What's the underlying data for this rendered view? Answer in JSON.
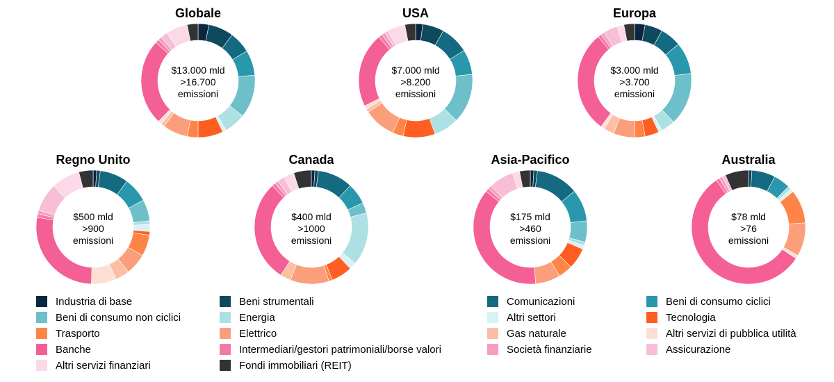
{
  "categories": [
    {
      "name": "Industria di base",
      "color": "#0b2740"
    },
    {
      "name": "Beni strumentali",
      "color": "#0e4a5e"
    },
    {
      "name": "Comunicazioni",
      "color": "#146a80"
    },
    {
      "name": "Beni di consumo ciclici",
      "color": "#2a98ac"
    },
    {
      "name": "Beni di consumo non ciclici",
      "color": "#6dbfca"
    },
    {
      "name": "Energia",
      "color": "#ade0e3"
    },
    {
      "name": "Altri settori",
      "color": "#d8f2f3"
    },
    {
      "name": "Tecnologia",
      "color": "#fe5e22"
    },
    {
      "name": "Trasporto",
      "color": "#fe8547"
    },
    {
      "name": "Elettrico",
      "color": "#fb9e7c"
    },
    {
      "name": "Gas naturale",
      "color": "#fcbfa3"
    },
    {
      "name": "Altri servizi di pubblica utilità",
      "color": "#fde0d3"
    },
    {
      "name": "Banche",
      "color": "#f45f95"
    },
    {
      "name": "Intermediari/gestori patrimoniali/borse valori",
      "color": "#f27aa2"
    },
    {
      "name": "Società finanziarie",
      "color": "#f59ec2"
    },
    {
      "name": "Assicurazione",
      "color": "#f8bed6"
    },
    {
      "name": "Altri servizi finanziari",
      "color": "#fbd9e6"
    },
    {
      "name": "Fondi immobiliari (REIT)",
      "color": "#333333"
    }
  ],
  "chart_data": [
    {
      "type": "pie",
      "title": "Globale",
      "center_lines": [
        "$13.000 mld",
        ">16.700",
        "emissioni"
      ],
      "categories": [
        "Industria di base",
        "Beni strumentali",
        "Comunicazioni",
        "Beni di consumo ciclici",
        "Beni di consumo non ciclici",
        "Energia",
        "Altri settori",
        "Tecnologia",
        "Trasporto",
        "Elettrico",
        "Gas naturale",
        "Altri servizi di pubblica utilità",
        "Banche",
        "Intermediari/gestori patrimoniali/borse valori",
        "Società finanziarie",
        "Assicurazione",
        "Altri servizi finanziari",
        "Fondi immobiliari (REIT)"
      ],
      "values": [
        3,
        7,
        6,
        7,
        12,
        6,
        1,
        7,
        3,
        7,
        1,
        1,
        24,
        1,
        1,
        2,
        6,
        3
      ]
    },
    {
      "type": "pie",
      "title": "USA",
      "center_lines": [
        "$7.000 mld",
        ">8.200",
        "emissioni"
      ],
      "categories": [
        "Industria di base",
        "Beni strumentali",
        "Comunicazioni",
        "Beni di consumo ciclici",
        "Beni di consumo non ciclici",
        "Energia",
        "Altri settori",
        "Tecnologia",
        "Trasporto",
        "Elettrico",
        "Gas naturale",
        "Altri servizi di pubblica utilità",
        "Banche",
        "Intermediari/gestori patrimoniali/borse valori",
        "Società finanziarie",
        "Assicurazione",
        "Altri servizi finanziari",
        "Fondi immobiliari (REIT)"
      ],
      "values": [
        2,
        6,
        8,
        7,
        14,
        7,
        0,
        9,
        3,
        9,
        1,
        1,
        21,
        1,
        1,
        1,
        5,
        3
      ]
    },
    {
      "type": "pie",
      "title": "Europa",
      "center_lines": [
        "$3.000 mld",
        ">3.700",
        "emissioni"
      ],
      "categories": [
        "Industria di base",
        "Beni strumentali",
        "Comunicazioni",
        "Beni di consumo ciclici",
        "Beni di consumo non ciclici",
        "Energia",
        "Altri settori",
        "Tecnologia",
        "Trasporto",
        "Elettrico",
        "Gas naturale",
        "Altri servizi di pubblica utilità",
        "Banche",
        "Intermediari/gestori patrimoniali/borse valori",
        "Società finanziarie",
        "Assicurazione",
        "Altri servizi finanziari",
        "Fondi immobiliari (REIT)"
      ],
      "values": [
        3,
        5,
        6,
        9,
        15,
        4,
        1,
        4,
        3,
        6,
        3,
        1,
        29,
        1,
        1,
        4,
        2,
        3
      ]
    },
    {
      "type": "pie",
      "title": "Regno Unito",
      "center_lines": [
        "$500 mld",
        ">900",
        "emissioni"
      ],
      "categories": [
        "Industria di base",
        "Beni strumentali",
        "Comunicazioni",
        "Beni di consumo ciclici",
        "Beni di consumo non ciclici",
        "Energia",
        "Altri settori",
        "Tecnologia",
        "Trasporto",
        "Elettrico",
        "Gas naturale",
        "Altri servizi di pubblica utilità",
        "Banche",
        "Intermediari/gestori patrimoniali/borse valori",
        "Società finanziarie",
        "Assicurazione",
        "Altri servizi finanziari",
        "Fondi immobiliari (REIT)"
      ],
      "values": [
        1,
        1,
        8,
        7,
        6,
        1,
        2,
        1,
        6,
        6,
        4,
        7,
        27,
        1,
        1,
        8,
        8,
        4
      ]
    },
    {
      "type": "pie",
      "title": "Canada",
      "center_lines": [
        "$400 mld",
        ">1000",
        "emissioni"
      ],
      "categories": [
        "Industria di base",
        "Beni strumentali",
        "Comunicazioni",
        "Beni di consumo ciclici",
        "Beni di consumo non ciclici",
        "Energia",
        "Altri settori",
        "Tecnologia",
        "Trasporto",
        "Elettrico",
        "Gas naturale",
        "Altri servizi di pubblica utilità",
        "Banche",
        "Intermediari/gestori patrimoniali/borse valori",
        "Società finanziarie",
        "Assicurazione",
        "Altri servizi finanziari",
        "Fondi immobiliari (REIT)"
      ],
      "values": [
        1,
        1,
        10,
        6,
        3,
        15,
        2,
        6,
        1,
        11,
        3,
        0,
        29,
        1,
        1,
        2,
        3,
        5
      ]
    },
    {
      "type": "pie",
      "title": "Asia-Pacifico",
      "center_lines": [
        "$175 mld",
        ">460",
        "emissioni"
      ],
      "categories": [
        "Industria di base",
        "Beni strumentali",
        "Comunicazioni",
        "Beni di consumo ciclici",
        "Beni di consumo non ciclici",
        "Energia",
        "Altri settori",
        "Tecnologia",
        "Trasporto",
        "Elettrico",
        "Gas naturale",
        "Altri servizi di pubblica utilità",
        "Banche",
        "Intermediari/gestori patrimoniali/borse valori",
        "Società finanziarie",
        "Assicurazione",
        "Altri servizi finanziari",
        "Fondi immobiliari (REIT)"
      ],
      "values": [
        1,
        1,
        12,
        9,
        6,
        1,
        1,
        6,
        4,
        7,
        0,
        0,
        37,
        1,
        1,
        7,
        2,
        3
      ]
    },
    {
      "type": "pie",
      "title": "Australia",
      "center_lines": [
        "$78 mld",
        ">76",
        "emissioni"
      ],
      "categories": [
        "Industria di base",
        "Beni strumentali",
        "Comunicazioni",
        "Beni di consumo ciclici",
        "Beni di consumo non ciclici",
        "Energia",
        "Altri settori",
        "Tecnologia",
        "Trasporto",
        "Elettrico",
        "Gas naturale",
        "Altri servizi di pubblica utilità",
        "Banche",
        "Intermediari/gestori patrimoniali/borse valori",
        "Società finanziarie",
        "Assicurazione",
        "Altri servizi finanziari",
        "Fondi immobiliari (REIT)"
      ],
      "values": [
        0,
        1,
        7,
        5,
        0,
        1,
        1,
        0,
        10,
        10,
        0,
        1,
        59,
        1,
        1,
        1,
        0,
        7
      ]
    }
  ]
}
